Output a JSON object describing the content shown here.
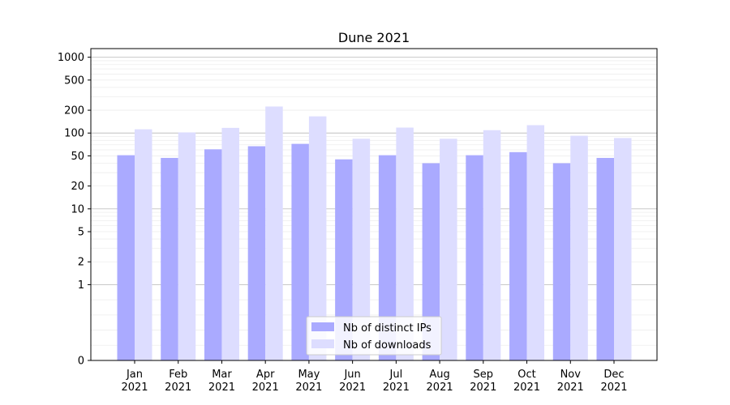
{
  "chart_data": {
    "type": "bar",
    "title": "Dune 2021",
    "xlabel": "",
    "ylabel": "",
    "categories": [
      [
        "Jan",
        "2021"
      ],
      [
        "Feb",
        "2021"
      ],
      [
        "Mar",
        "2021"
      ],
      [
        "Apr",
        "2021"
      ],
      [
        "May",
        "2021"
      ],
      [
        "Jun",
        "2021"
      ],
      [
        "Jul",
        "2021"
      ],
      [
        "Aug",
        "2021"
      ],
      [
        "Sep",
        "2021"
      ],
      [
        "Oct",
        "2021"
      ],
      [
        "Nov",
        "2021"
      ],
      [
        "Dec",
        "2021"
      ]
    ],
    "series": [
      {
        "name": "Nb of distinct IPs",
        "color": "#aaaaff",
        "values": [
          51,
          47,
          61,
          67,
          72,
          45,
          51,
          40,
          51,
          56,
          40,
          47
        ]
      },
      {
        "name": "Nb of downloads",
        "color": "#ddddff",
        "values": [
          112,
          102,
          117,
          224,
          166,
          84,
          118,
          84,
          109,
          127,
          92,
          86
        ]
      }
    ],
    "y_scale": "symlog",
    "y_ticks": [
      {
        "value": 0,
        "label": "0"
      },
      {
        "value": 1,
        "label": "1"
      },
      {
        "value": 2,
        "label": "2"
      },
      {
        "value": 5,
        "label": "5"
      },
      {
        "value": 10,
        "label": "10"
      },
      {
        "value": 20,
        "label": "20"
      },
      {
        "value": 50,
        "label": "50"
      },
      {
        "value": 100,
        "label": "100"
      },
      {
        "value": 200,
        "label": "200"
      },
      {
        "value": 500,
        "label": "500"
      },
      {
        "value": 1000,
        "label": "1000"
      }
    ],
    "ylim": [
      0,
      1300
    ],
    "grid": true,
    "legend_position": "bottom-center"
  }
}
